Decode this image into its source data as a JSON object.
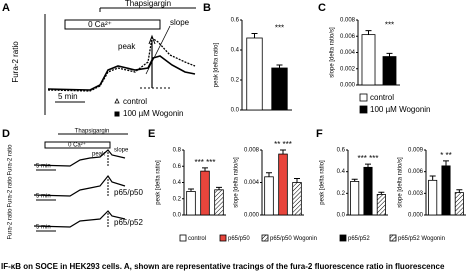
{
  "panel_labels": [
    "A",
    "B",
    "C",
    "D",
    "E",
    "F"
  ],
  "panel_a": {
    "y_label": "Fura-2 ratio",
    "thapsigargin": "Thapsigargin",
    "zero_ca": "0 Ca²⁺",
    "peak": "peak",
    "slope": "slope",
    "scale": "5 min",
    "legend": [
      "control",
      "100 µM Wogonin"
    ]
  },
  "panel_d": {
    "thapsigargin": "Thapsigargin",
    "zero_ca": "0 Ca²⁺",
    "peak": "peak",
    "slope": "slope",
    "scales": [
      "5 min",
      "5 min",
      "5 min"
    ],
    "y_labels": [
      "Fura-2 ratio",
      "Fura-2 ratio",
      "Fura-2 ratio"
    ],
    "trace_labels": [
      "p65/p50",
      "p65/p52"
    ]
  },
  "legend_bc": [
    {
      "name": "control",
      "fill": "#ffffff"
    },
    {
      "name": "100 µM Wogonin",
      "fill": "#000000"
    }
  ],
  "legend_ef": [
    {
      "name": "control",
      "fill": "#ffffff"
    },
    {
      "name": "p65/p50",
      "fill": "#e8453c"
    },
    {
      "name": "p65/p50 Wogonin",
      "fill": "hatched"
    },
    {
      "name": "p65/p52",
      "fill": "#000000"
    },
    {
      "name": "p65/p52 Wogonin",
      "fill": "hatched"
    }
  ],
  "chart_data": [
    {
      "type": "bar",
      "y_label": "peak [delta ratio]",
      "categories": [
        null,
        null
      ],
      "values": [
        0.48,
        0.28
      ],
      "errors": [
        0.03,
        0.02
      ],
      "fills": [
        "#ffffff",
        "#000000"
      ],
      "annotation": "***",
      "ylim": [
        0,
        0.6
      ],
      "yticks": [
        {
          "value": 0,
          "label": "0.0"
        },
        0.2,
        0.4,
        0.6
      ]
    },
    {
      "type": "bar",
      "y_label": "slope [delta ratio/s]",
      "categories": [
        null,
        null
      ],
      "values": [
        0.0062,
        0.0035
      ],
      "errors": [
        0.0005,
        0.0004
      ],
      "fills": [
        "#ffffff",
        "#000000"
      ],
      "annotation": "***",
      "ylim": [
        0,
        0.008
      ],
      "yticks": [
        {
          "value": 0,
          "label": "0.000"
        },
        0.002,
        0.004,
        0.006,
        0.008
      ]
    },
    {
      "type": "bar",
      "y_label": "peak [delta ratio]",
      "categories": [
        null,
        null,
        null
      ],
      "values": [
        0.29,
        0.54,
        0.31
      ],
      "errors": [
        0.03,
        0.04,
        0.03
      ],
      "fills": [
        "#ffffff",
        "#e8453c",
        "hatched"
      ],
      "annotation": "*** ***",
      "ylim": [
        0,
        0.8
      ],
      "yticks": [
        {
          "value": 0,
          "label": "0.0"
        },
        0.2,
        0.4,
        0.6,
        0.8
      ]
    },
    {
      "type": "bar",
      "y_label": "slope [delta ratio/s]",
      "categories": [
        null,
        null,
        null
      ],
      "values": [
        0.0047,
        0.0075,
        0.004
      ],
      "errors": [
        0.0005,
        0.0005,
        0.0005
      ],
      "fills": [
        "#ffffff",
        "#e8453c",
        "hatched"
      ],
      "annotation": "** ***",
      "ylim": [
        0,
        0.008
      ],
      "yticks": [
        {
          "value": 0,
          "label": "0.000"
        },
        0.004,
        0.008
      ]
    },
    {
      "type": "bar",
      "y_label": "peak [delta ratio]",
      "categories": [
        null,
        null,
        null
      ],
      "values": [
        0.31,
        0.44,
        0.19
      ],
      "errors": [
        0.02,
        0.03,
        0.02
      ],
      "fills": [
        "#ffffff",
        "#000000",
        "hatched"
      ],
      "annotation": "*** ***",
      "ylim": [
        0,
        0.6
      ],
      "yticks": [
        {
          "value": 0,
          "label": "0.0"
        },
        0.2,
        0.4,
        0.6
      ]
    },
    {
      "type": "bar",
      "y_label": "slope [delta ratio/s]",
      "categories": [
        null,
        null,
        null
      ],
      "values": [
        0.0048,
        0.0068,
        0.0031
      ],
      "errors": [
        0.0006,
        0.0007,
        0.0004
      ],
      "fills": [
        "#ffffff",
        "#000000",
        "hatched"
      ],
      "annotation": "* **",
      "ylim": [
        0,
        0.009
      ],
      "yticks": [
        {
          "value": 0,
          "label": "0.000"
        },
        0.003,
        0.006,
        0.009
      ]
    }
  ],
  "caption": "IF-κB on SOCE in HEK293 cells. A, shown are representative tracings of the fura-2 fluorescence ratio in fluorescence"
}
